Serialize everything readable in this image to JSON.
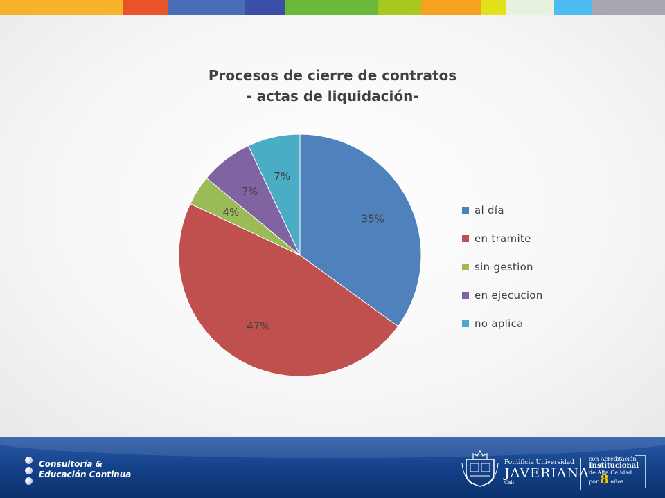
{
  "top_bar": {
    "segments": [
      {
        "color": "#f7b32b",
        "width": 178
      },
      {
        "color": "#e8532a",
        "width": 64
      },
      {
        "color": "#4b6cb7",
        "width": 112
      },
      {
        "color": "#3b4fa8",
        "width": 58
      },
      {
        "color": "#6cb83a",
        "width": 134
      },
      {
        "color": "#a8c820",
        "width": 62
      },
      {
        "color": "#f6a21e",
        "width": 86
      },
      {
        "color": "#e2e21c",
        "width": 36
      },
      {
        "color": "#e6f2df",
        "width": 70
      },
      {
        "color": "#4dbbf0",
        "width": 55
      },
      {
        "color": "#a7a7af",
        "width": 105
      }
    ]
  },
  "chart_data": {
    "type": "pie",
    "title": "Procesos de cierre de contratos",
    "subtitle": "- actas de liquidación-",
    "start_angle_deg": 0,
    "direction": "clockwise",
    "slices": [
      {
        "label": "al día",
        "value": 35,
        "value_label": "35%",
        "color": "#4f81bd"
      },
      {
        "label": "en tramite",
        "value": 47,
        "value_label": "47%",
        "color": "#c0504d"
      },
      {
        "label": "sin gestion",
        "value": 4,
        "value_label": "4%",
        "color": "#9bbb59"
      },
      {
        "label": "en ejecucion",
        "value": 7,
        "value_label": "7%",
        "color": "#8064a2"
      },
      {
        "label": "no aplica",
        "value": 7,
        "value_label": "7%",
        "color": "#4bacc6"
      }
    ],
    "legend_position": "right"
  },
  "footer": {
    "brand_line1": "Consultoría &",
    "brand_line2": "Educación Continua",
    "university_line1": "Pontificia Universidad",
    "university_line2": "JAVERIANA",
    "university_line3": "Cali",
    "acred_line1": "con Acreditación",
    "acred_line2": "Institucional",
    "acred_line3": "de Alta Calidad",
    "acred_line4_pre": "por",
    "acred_line4_num": "8",
    "acred_line4_post": "años"
  }
}
